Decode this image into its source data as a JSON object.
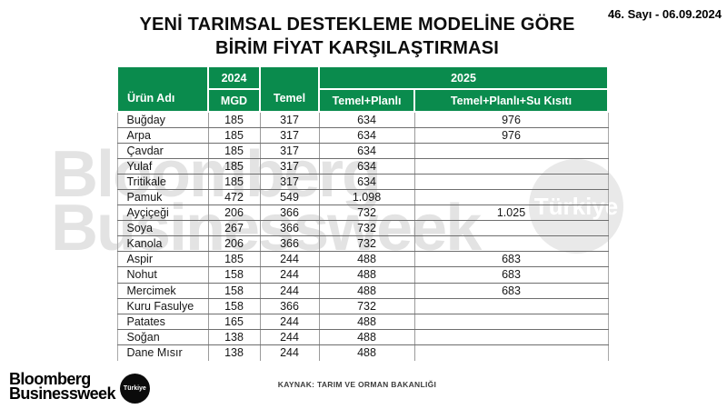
{
  "meta": {
    "issue": "46. Sayı - 06.09.2024"
  },
  "title": {
    "line1": "YENİ TARIMSAL DESTEKLEME MODELİNE GÖRE",
    "line2": "BİRİM FİYAT KARŞILAŞTIRMASI"
  },
  "table": {
    "col_product": "Ürün Adı",
    "group_2024": "2024",
    "group_2025": "2025",
    "col_mgd": "MGD",
    "col_temel": "Temel",
    "col_temel_planli": "Temel+Planlı",
    "col_temel_planli_su": "Temel+Planlı+Su Kısıtı"
  },
  "chart_data": {
    "type": "table",
    "title": "YENİ TARIMSAL DESTEKLEME MODELİNE GÖRE BİRİM FİYAT KARŞILAŞTIRMASI",
    "columns": [
      "Ürün Adı",
      "2024 MGD",
      "Temel",
      "2025 Temel+Planlı",
      "2025 Temel+Planlı+Su Kısıtı"
    ],
    "rows": [
      [
        "Buğday",
        "185",
        "317",
        "634",
        "976"
      ],
      [
        "Arpa",
        "185",
        "317",
        "634",
        "976"
      ],
      [
        "Çavdar",
        "185",
        "317",
        "634",
        ""
      ],
      [
        "Yulaf",
        "185",
        "317",
        "634",
        ""
      ],
      [
        "Tritikale",
        "185",
        "317",
        "634",
        ""
      ],
      [
        "Pamuk",
        "472",
        "549",
        "1.098",
        ""
      ],
      [
        "Ayçiçeği",
        "206",
        "366",
        "732",
        "1.025"
      ],
      [
        "Soya",
        "267",
        "366",
        "732",
        ""
      ],
      [
        "Kanola",
        "206",
        "366",
        "732",
        ""
      ],
      [
        "Aspir",
        "185",
        "244",
        "488",
        "683"
      ],
      [
        "Nohut",
        "158",
        "244",
        "488",
        "683"
      ],
      [
        "Mercimek",
        "158",
        "244",
        "488",
        "683"
      ],
      [
        "Kuru Fasulye",
        "158",
        "366",
        "732",
        ""
      ],
      [
        "Patates",
        "165",
        "244",
        "488",
        ""
      ],
      [
        "Soğan",
        "138",
        "244",
        "488",
        ""
      ],
      [
        "Dane Mısır",
        "138",
        "244",
        "488",
        ""
      ]
    ],
    "source": "KAYNAK: TARIM VE ORMAN BAKANLIĞI"
  },
  "watermark": {
    "line1": "Bloomberg",
    "line2": "Businessweek",
    "badge": "Türkiye"
  },
  "footer": {
    "logo_line1": "Bloomberg",
    "logo_line2": "Businessweek",
    "logo_badge": "Türkiye",
    "source": "KAYNAK: TARIM VE ORMAN BAKANLIĞI"
  },
  "colors": {
    "header_green": "#0a8b4d",
    "row_line": "#6e6e6e",
    "watermark_gray": "#e3e3e3"
  }
}
